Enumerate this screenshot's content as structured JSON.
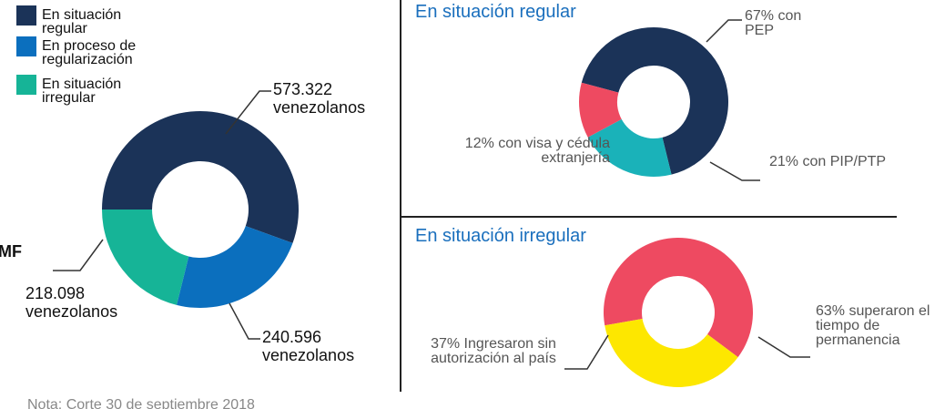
{
  "chart_data": [
    {
      "type": "donut",
      "categories": [
        "En situación regular",
        "En proceso de regularización",
        "En situación irregular"
      ],
      "values": [
        573322,
        240596,
        218098
      ],
      "value_labels": [
        "573.322 venezolanos",
        "240.596 venezolanos",
        "218.098 venezolanos"
      ],
      "colors": [
        "#1b3358",
        "#0b6fbe",
        "#16b497"
      ],
      "legend": "top-left",
      "annotations": [
        "MF",
        "Nota: Corte 30 de septiembre 2018"
      ]
    },
    {
      "type": "donut",
      "title": "En situación regular",
      "values": [
        67,
        21,
        12
      ],
      "value_labels": [
        "67% con PEP",
        "21% con PIP/PTP",
        "12% con visa y cédula extranjería"
      ],
      "colors": [
        "#1b3358",
        "#1ab2b9",
        "#ee4a61"
      ]
    },
    {
      "type": "donut",
      "title": "En situación irregular",
      "values": [
        63,
        37
      ],
      "value_labels": [
        "63% superaron el tiempo de permanencia",
        "37% Ingresaron sin autorización al país"
      ],
      "colors": [
        "#ee4a61",
        "#fde700"
      ]
    }
  ]
}
